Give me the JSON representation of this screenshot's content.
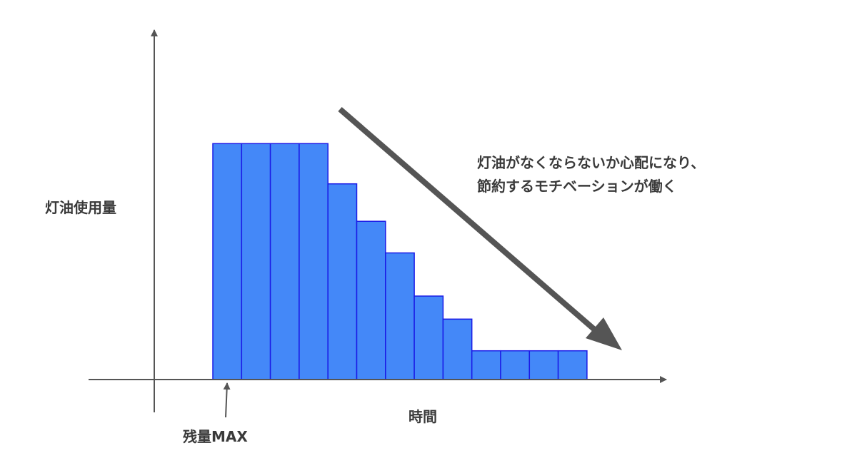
{
  "chart_data": {
    "type": "bar",
    "title": "",
    "xlabel": "時間",
    "ylabel": "灯油使用量",
    "grid": false,
    "legend": "none",
    "bar_color": "#4488F8",
    "bar_edge_color": "#1A1AE6",
    "axis_color": "#555555",
    "values": [
      8.2,
      8.2,
      8.2,
      8.2,
      6.8,
      5.5,
      4.4,
      2.9,
      2.1,
      1.0,
      1.0,
      1.0,
      1.0
    ],
    "ylim": [
      0,
      12
    ],
    "annotations": {
      "start_marker": "残量MAX",
      "trend_line1": "灯油がなくならないか心配になり、",
      "trend_line2": "節約するモチベーションが働く"
    }
  }
}
